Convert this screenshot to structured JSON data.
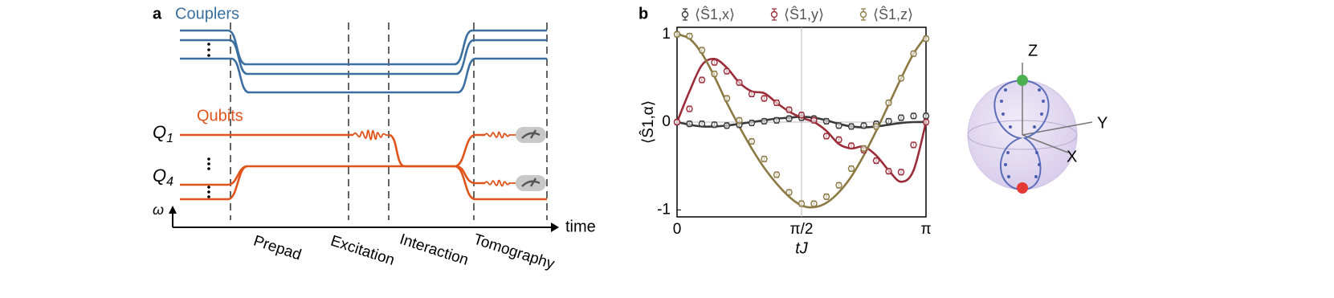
{
  "panel_a": {
    "label": "a",
    "couplers": "Couplers",
    "qubits": "Qubits",
    "qubit_labels": [
      {
        "symbol": "Q",
        "subscript": "1"
      },
      {
        "symbol": "Q",
        "subscript": "4"
      }
    ],
    "frequency_axis": "ω",
    "time_axis": "time",
    "stages": [
      "Prepad",
      "Excitation",
      "Interaction",
      "Tomography"
    ]
  },
  "chart_data": {
    "type": "errorbar",
    "label": "b",
    "x_label": "tJ",
    "y_label": "⟨Ŝ1,α⟩",
    "x": [
      0,
      0.1571,
      0.3142,
      0.4712,
      0.6283,
      0.7854,
      0.9425,
      1.0996,
      1.2566,
      1.4137,
      1.5708,
      1.7279,
      1.885,
      2.042,
      2.1991,
      2.3562,
      2.5133,
      2.6704,
      2.8274,
      2.9845,
      3.1416
    ],
    "xlim": [
      0,
      3.1416
    ],
    "xticks": [
      0,
      {
        "value": 1.5708,
        "label": "π/2"
      },
      {
        "value": 3.1416,
        "label": "π"
      }
    ],
    "ylim": [
      -1.08,
      1.08
    ],
    "yticks": [
      -1,
      0,
      1
    ],
    "series": [
      {
        "name": "⟨Ŝ1,x⟩",
        "color": "#3a3a3a",
        "style": "markers",
        "error": 0.03,
        "values": [
          0,
          -0.02,
          -0.02,
          -0.03,
          -0.04,
          -0.03,
          -0.01,
          0.01,
          0.02,
          0.04,
          0.05,
          0.04,
          0.01,
          -0.04,
          -0.05,
          -0.04,
          -0.02,
          0.01,
          0.05,
          0.07,
          0.07
        ]
      },
      {
        "name": "⟨Ŝ1,y⟩",
        "color": "#9b2d3a",
        "style": "markers",
        "error": 0.03,
        "values": [
          0,
          0.15,
          0.48,
          0.68,
          0.58,
          0.45,
          0.32,
          0.27,
          0.22,
          0.14,
          0.08,
          0.02,
          -0.16,
          -0.2,
          -0.27,
          -0.32,
          -0.44,
          -0.56,
          -0.57,
          -0.26,
          0
        ]
      },
      {
        "name": "⟨Ŝ1,z⟩",
        "color": "#8c7a45",
        "style": "markers",
        "error": 0.03,
        "values": [
          1,
          0.98,
          0.82,
          0.55,
          0.27,
          0.02,
          -0.22,
          -0.42,
          -0.6,
          -0.8,
          -0.93,
          -0.93,
          -0.85,
          -0.72,
          -0.53,
          -0.3,
          -0.05,
          0.22,
          0.5,
          0.78,
          0.95
        ]
      },
      {
        "color": "#3a3a3a",
        "style": "line",
        "values": [
          0,
          -0.03,
          -0.05,
          -0.05,
          -0.04,
          -0.02,
          0,
          0.02,
          0.04,
          0.05,
          0.06,
          0.05,
          0.02,
          -0.02,
          -0.05,
          -0.06,
          -0.05,
          -0.03,
          -0.01,
          0,
          0
        ]
      },
      {
        "color": "#9b2d3a",
        "style": "line",
        "values": [
          0,
          0.35,
          0.65,
          0.72,
          0.62,
          0.45,
          0.35,
          0.33,
          0.22,
          0.12,
          0.05,
          0,
          -0.1,
          -0.25,
          -0.3,
          -0.28,
          -0.38,
          -0.55,
          -0.68,
          -0.55,
          0
        ]
      },
      {
        "color": "#8c7a45",
        "style": "line",
        "values": [
          1,
          0.95,
          0.78,
          0.52,
          0.22,
          -0.05,
          -0.3,
          -0.52,
          -0.7,
          -0.85,
          -0.95,
          -0.97,
          -0.92,
          -0.8,
          -0.62,
          -0.38,
          -0.1,
          0.2,
          0.5,
          0.78,
          0.98
        ]
      }
    ]
  },
  "bloch": {
    "axes": [
      "Z",
      "Y",
      "X"
    ]
  }
}
